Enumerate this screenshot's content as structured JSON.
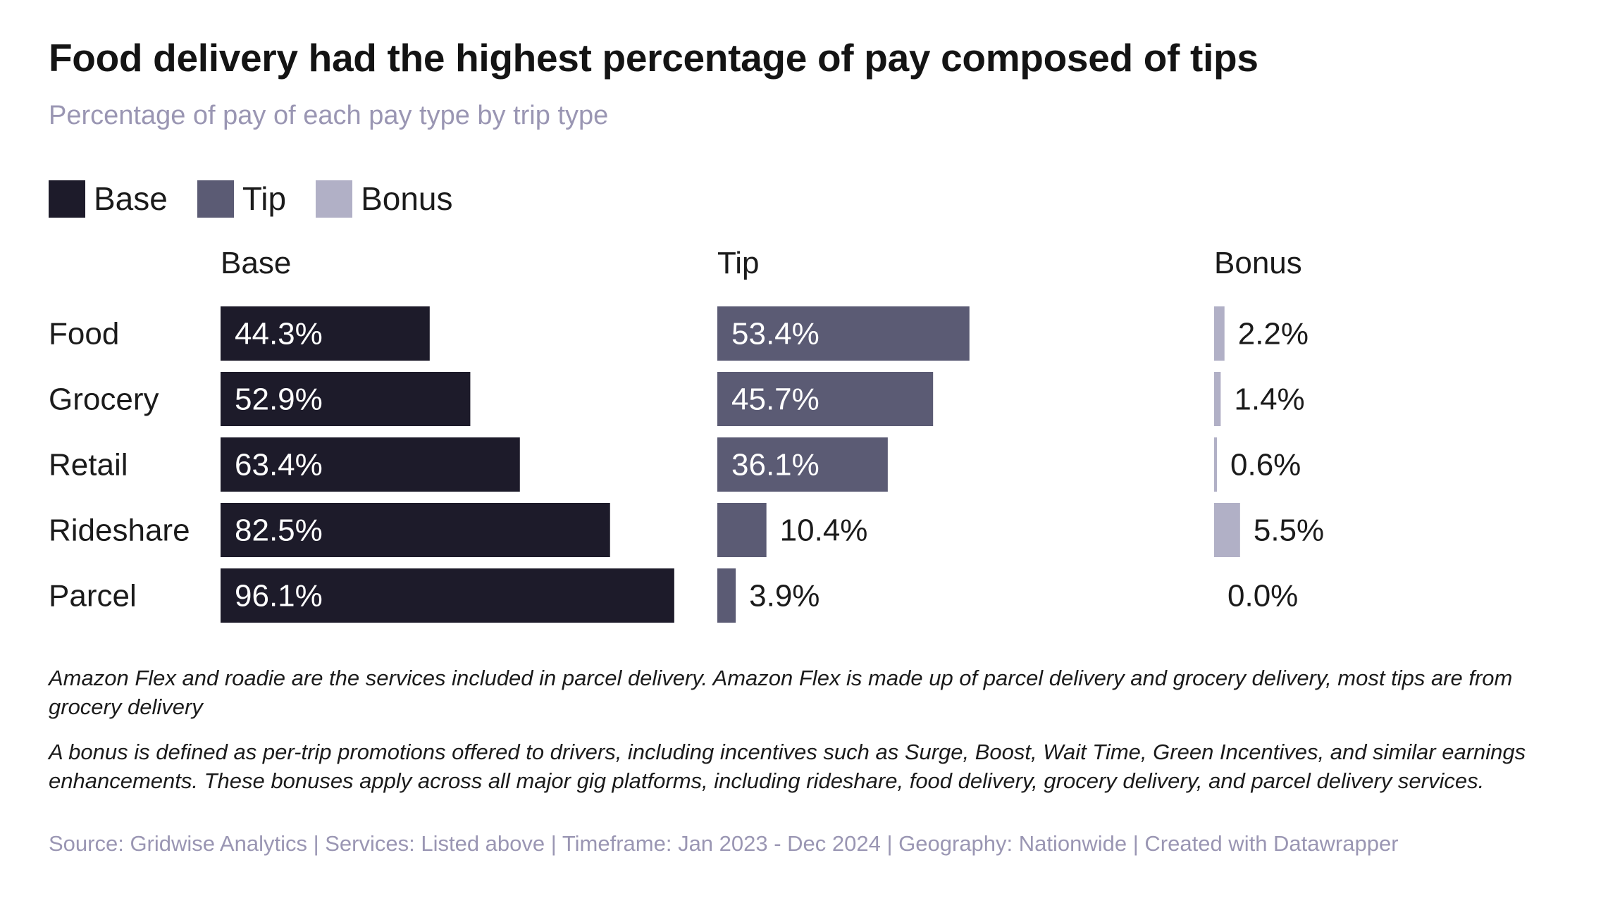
{
  "title": "Food delivery had the highest percentage of pay composed of tips",
  "subtitle": "Percentage of pay of each pay type by trip type",
  "legend": [
    {
      "label": "Base",
      "color": "#1d1b2a"
    },
    {
      "label": "Tip",
      "color": "#5b5b74"
    },
    {
      "label": "Bonus",
      "color": "#b1b0c6"
    }
  ],
  "chart_data": {
    "type": "bar",
    "orientation": "horizontal",
    "layout": "small-multiples",
    "title": "Food delivery had the highest percentage of pay composed of tips",
    "subtitle": "Percentage of pay of each pay type by trip type",
    "categories": [
      "Food",
      "Grocery",
      "Retail",
      "Rideshare",
      "Parcel"
    ],
    "value_suffix": "%",
    "xlim": [
      0,
      100
    ],
    "series": [
      {
        "name": "Base",
        "color": "#1d1b2a",
        "values": [
          44.3,
          52.9,
          63.4,
          82.5,
          96.1
        ],
        "labels": [
          "44.3%",
          "52.9%",
          "63.4%",
          "82.5%",
          "96.1%"
        ]
      },
      {
        "name": "Tip",
        "color": "#5b5b74",
        "values": [
          53.4,
          45.7,
          36.1,
          10.4,
          3.9
        ],
        "labels": [
          "53.4%",
          "45.7%",
          "36.1%",
          "10.4%",
          "3.9%"
        ]
      },
      {
        "name": "Bonus",
        "color": "#b1b0c6",
        "values": [
          2.2,
          1.4,
          0.6,
          5.5,
          0.0
        ],
        "labels": [
          "2.2%",
          "1.4%",
          "0.6%",
          "5.5%",
          "0.0%"
        ]
      }
    ]
  },
  "notes": [
    "Amazon Flex and roadie are the services included in parcel delivery. Amazon Flex is made up of parcel delivery and grocery delivery, most tips are from grocery delivery",
    "A bonus is defined as per-trip promotions offered to drivers, including incentives such as Surge, Boost, Wait Time, Green Incentives, and similar earnings enhancements. These bonuses apply across all major gig platforms, including rideshare, food delivery, grocery delivery, and parcel delivery services."
  ],
  "source": "Source: Gridwise Analytics | Services: Listed above | Timeframe: Jan 2023 - Dec 2024 | Geography: Nationwide | Created with Datawrapper"
}
